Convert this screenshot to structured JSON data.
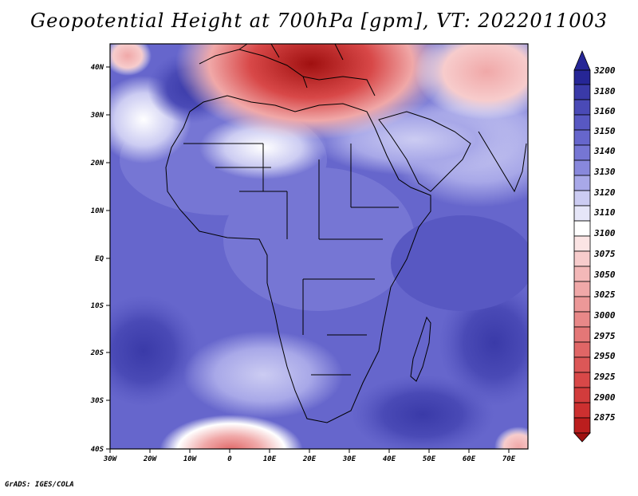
{
  "title": "Geopotential Height at 700hPa [gpm], VT: 2022011003",
  "credit": "GrADS: IGES/COLA",
  "axes": {
    "x_ticks": [
      "30W",
      "20W",
      "10W",
      "0",
      "10E",
      "20E",
      "30E",
      "40E",
      "50E",
      "60E",
      "70E"
    ],
    "y_ticks": [
      "40N",
      "30N",
      "20N",
      "10N",
      "EQ",
      "10S",
      "20S",
      "30S",
      "40S"
    ]
  },
  "colorbar": {
    "labels": [
      "3200",
      "3180",
      "3160",
      "3150",
      "3140",
      "3130",
      "3120",
      "3110",
      "3100",
      "3075",
      "3050",
      "3025",
      "3000",
      "2975",
      "2950",
      "2925",
      "2900",
      "2875"
    ],
    "colors": [
      "#262696",
      "#3a3aa8",
      "#4a4ab6",
      "#5858c2",
      "#6666cc",
      "#7676d4",
      "#8888dc",
      "#a8a8e8",
      "#ccccf2",
      "#ffffff",
      "#f7cccc",
      "#f0a8a8",
      "#e88888",
      "#e06666",
      "#d84848",
      "#cc3030",
      "#bb1e1e",
      "#a01010"
    ]
  },
  "map": {
    "variable": "700hPa geopotential height",
    "units": "gpm",
    "valid_time": "2022011003",
    "lon_range": [
      -30,
      75
    ],
    "lat_range": [
      -40,
      45
    ]
  }
}
